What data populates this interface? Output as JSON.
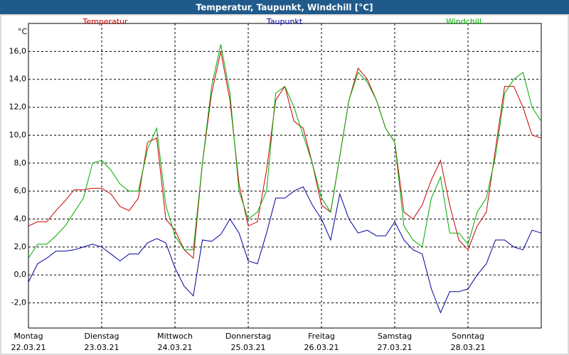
{
  "chart_data": {
    "type": "line",
    "title": "Temperatur, Taupunkt, Windchill [°C]",
    "y_unit": "°C",
    "ylim": [
      -3.8,
      18
    ],
    "yticks": [
      {
        "value": -2,
        "label": "-2,0"
      },
      {
        "value": 0,
        "label": "0,0"
      },
      {
        "value": 2,
        "label": "2,0"
      },
      {
        "value": 4,
        "label": "4,0"
      },
      {
        "value": 6,
        "label": "6,0"
      },
      {
        "value": 8,
        "label": "8,0"
      },
      {
        "value": 10,
        "label": "10,0"
      },
      {
        "value": 12,
        "label": "12,0"
      },
      {
        "value": 14,
        "label": "14,0"
      },
      {
        "value": 16,
        "label": "16,0"
      }
    ],
    "grid": true,
    "days": [
      {
        "name": "Montag",
        "date": "22.03.21"
      },
      {
        "name": "Dienstag",
        "date": "23.03.21"
      },
      {
        "name": "Mittwoch",
        "date": "24.03.21"
      },
      {
        "name": "Donnerstag",
        "date": "25.03.21"
      },
      {
        "name": "Freitag",
        "date": "26.03.21"
      },
      {
        "name": "Samstag",
        "date": "27.03.21"
      },
      {
        "name": "Sonntag",
        "date": "28.03.21"
      }
    ],
    "series": [
      {
        "name": "Temperatur",
        "color": "#cc0000",
        "values": [
          3.5,
          3.8,
          3.8,
          4.6,
          5.3,
          6.1,
          6.1,
          6.2,
          6.2,
          5.8,
          4.9,
          4.6,
          5.5,
          9.5,
          9.8,
          4.0,
          3.2,
          1.8,
          1.2,
          8.0,
          13.0,
          16.0,
          12.5,
          6.5,
          3.5,
          3.8,
          7.5,
          12.5,
          13.5,
          11.0,
          10.5,
          8.0,
          5.0,
          4.5,
          8.5,
          12.5,
          14.8,
          14.0,
          12.5,
          10.5,
          9.5,
          4.5,
          4.0,
          5.0,
          6.8,
          8.2,
          5.0,
          2.5,
          1.8,
          3.5,
          4.5,
          9.0,
          13.5,
          13.5,
          12.0,
          10.0,
          9.8
        ]
      },
      {
        "name": "Taupunkt",
        "color": "#000099",
        "values": [
          -0.5,
          0.8,
          1.2,
          1.7,
          1.7,
          1.8,
          2.0,
          2.2,
          2.0,
          1.5,
          1.0,
          1.5,
          1.5,
          2.3,
          2.6,
          2.3,
          0.5,
          -0.8,
          -1.5,
          2.5,
          2.4,
          2.9,
          4.0,
          3.0,
          1.0,
          0.8,
          3.0,
          5.5,
          5.5,
          6.0,
          6.3,
          5.0,
          4.0,
          2.5,
          5.8,
          4.0,
          3.0,
          3.2,
          2.8,
          2.8,
          3.8,
          2.5,
          1.8,
          1.5,
          -1.0,
          -2.7,
          -1.2,
          -1.2,
          -1.0,
          0.0,
          0.8,
          2.5,
          2.5,
          2.0,
          1.8,
          3.2,
          3.0
        ]
      },
      {
        "name": "Windchill",
        "color": "#00aa00",
        "values": [
          1.2,
          2.2,
          2.2,
          2.8,
          3.5,
          4.5,
          5.5,
          8.0,
          8.2,
          7.5,
          6.5,
          6.0,
          6.0,
          9.0,
          10.5,
          5.0,
          2.8,
          1.8,
          1.8,
          8.0,
          13.5,
          16.5,
          13.0,
          6.0,
          4.0,
          4.5,
          6.0,
          13.0,
          13.5,
          12.0,
          10.0,
          8.0,
          5.5,
          4.5,
          8.5,
          12.5,
          14.5,
          13.8,
          12.5,
          10.5,
          9.5,
          3.5,
          2.5,
          2.0,
          5.5,
          7.0,
          3.0,
          3.0,
          2.2,
          4.5,
          5.5,
          8.5,
          13.0,
          14.0,
          14.5,
          12.0,
          11.0
        ]
      }
    ]
  }
}
